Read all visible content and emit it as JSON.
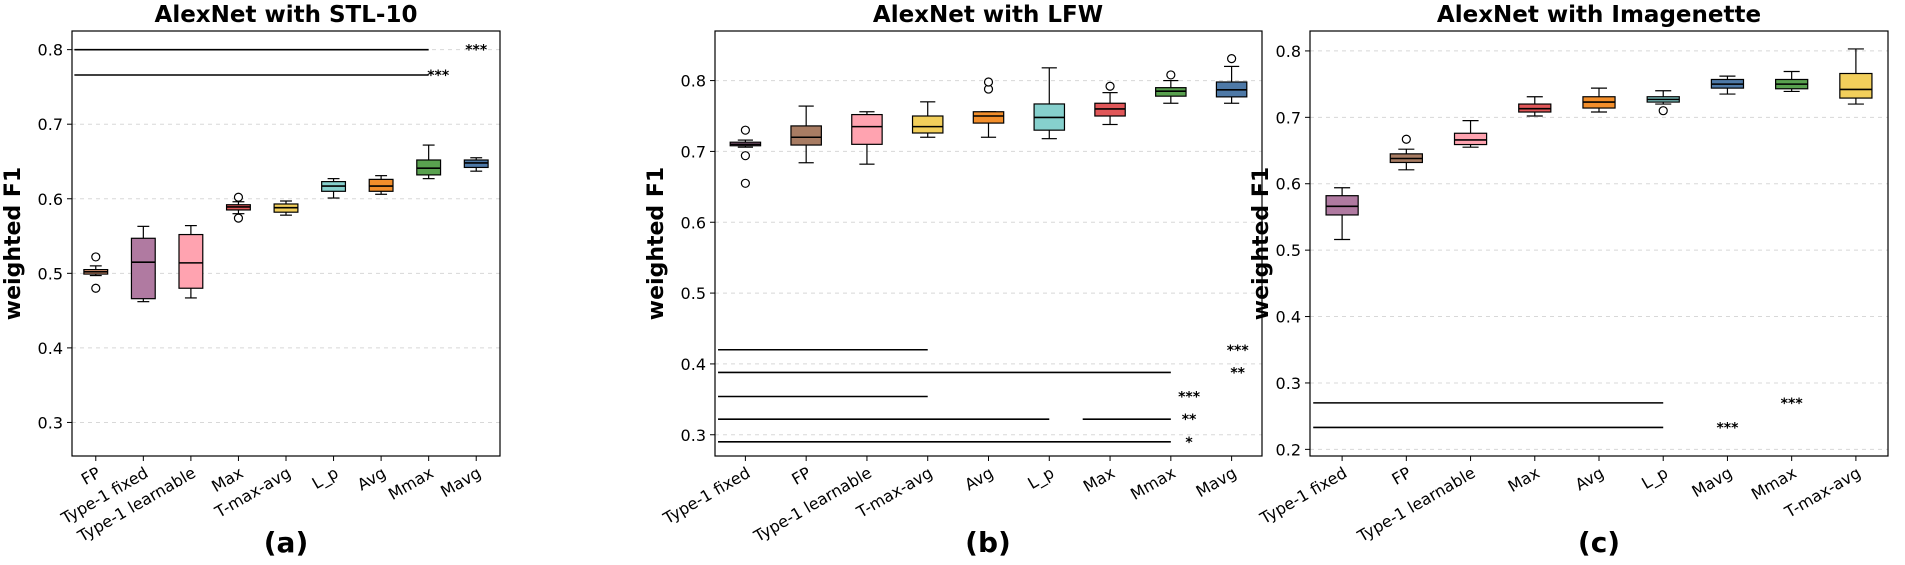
{
  "chart_data": [
    {
      "type": "box",
      "title": "AlexNet with STL-10",
      "panel_label": "(a)",
      "ylabel": "weighted F1",
      "ylim": [
        0.255,
        0.825
      ],
      "yticks": [
        "0.3",
        "0.4",
        "0.5",
        "0.6",
        "0.7",
        "0.8"
      ],
      "categories": [
        "FP",
        "Type-1 fixed",
        "Type-1 learnable",
        "Max",
        "T-max-avg",
        "L_p",
        "Avg",
        "Mmax",
        "Mavg"
      ],
      "colors": [
        "#e8a07a",
        "#b07aa1",
        "#ffa3b0",
        "#e15759",
        "#f2cf5b",
        "#86d0cd",
        "#f28e2b",
        "#59a14f",
        "#4e79a7"
      ],
      "boxes": [
        {
          "wlo": 0.497,
          "q1": 0.499,
          "med": 0.502,
          "q3": 0.505,
          "whi": 0.51,
          "outliers": [
            0.522,
            0.48
          ]
        },
        {
          "wlo": 0.462,
          "q1": 0.466,
          "med": 0.515,
          "q3": 0.547,
          "whi": 0.563,
          "outliers": []
        },
        {
          "wlo": 0.467,
          "q1": 0.48,
          "med": 0.514,
          "q3": 0.552,
          "whi": 0.564,
          "outliers": []
        },
        {
          "wlo": 0.58,
          "q1": 0.585,
          "med": 0.589,
          "q3": 0.592,
          "whi": 0.596,
          "outliers": [
            0.602,
            0.574
          ]
        },
        {
          "wlo": 0.578,
          "q1": 0.582,
          "med": 0.588,
          "q3": 0.593,
          "whi": 0.597,
          "outliers": []
        },
        {
          "wlo": 0.601,
          "q1": 0.61,
          "med": 0.617,
          "q3": 0.623,
          "whi": 0.627,
          "outliers": []
        },
        {
          "wlo": 0.606,
          "q1": 0.61,
          "med": 0.617,
          "q3": 0.626,
          "whi": 0.631,
          "outliers": []
        },
        {
          "wlo": 0.627,
          "q1": 0.632,
          "med": 0.641,
          "q3": 0.652,
          "whi": 0.672,
          "outliers": []
        },
        {
          "wlo": 0.637,
          "q1": 0.642,
          "med": 0.648,
          "q3": 0.652,
          "whi": 0.655,
          "outliers": []
        }
      ],
      "significance": [
        {
          "y": 0.8,
          "from": 0,
          "to": 7,
          "label": "***",
          "label_at": 8.0
        },
        {
          "y": 0.766,
          "from": 0,
          "to": 7,
          "label": "***",
          "label_at": 7.2
        }
      ]
    },
    {
      "type": "box",
      "title": "AlexNet with LFW",
      "panel_label": "(b)",
      "ylabel": "weighted F1",
      "ylim": [
        0.27,
        0.87
      ],
      "yticks": [
        "0.3",
        "0.4",
        "0.5",
        "0.6",
        "0.7",
        "0.8"
      ],
      "categories": [
        "Type-1 fixed",
        "FP",
        "Type-1 learnable",
        "T-max-avg",
        "Avg",
        "L_p",
        "Max",
        "Mmax",
        "Mavg"
      ],
      "colors": [
        "#b07aa1",
        "#a87c63",
        "#ffa3b0",
        "#f2cf5b",
        "#f28e2b",
        "#86d0cd",
        "#e15759",
        "#59a14f",
        "#4e79a7"
      ],
      "boxes": [
        {
          "wlo": 0.706,
          "q1": 0.708,
          "med": 0.71,
          "q3": 0.713,
          "whi": 0.716,
          "outliers": [
            0.73,
            0.694,
            0.655
          ]
        },
        {
          "wlo": 0.684,
          "q1": 0.709,
          "med": 0.72,
          "q3": 0.736,
          "whi": 0.764,
          "outliers": []
        },
        {
          "wlo": 0.682,
          "q1": 0.71,
          "med": 0.735,
          "q3": 0.752,
          "whi": 0.756,
          "outliers": []
        },
        {
          "wlo": 0.72,
          "q1": 0.726,
          "med": 0.735,
          "q3": 0.75,
          "whi": 0.77,
          "outliers": []
        },
        {
          "wlo": 0.72,
          "q1": 0.74,
          "med": 0.75,
          "q3": 0.756,
          "whi": 0.756,
          "outliers": [
            0.788,
            0.798
          ]
        },
        {
          "wlo": 0.718,
          "q1": 0.73,
          "med": 0.748,
          "q3": 0.767,
          "whi": 0.818,
          "outliers": []
        },
        {
          "wlo": 0.738,
          "q1": 0.75,
          "med": 0.76,
          "q3": 0.768,
          "whi": 0.783,
          "outliers": [
            0.792
          ]
        },
        {
          "wlo": 0.768,
          "q1": 0.778,
          "med": 0.785,
          "q3": 0.79,
          "whi": 0.8,
          "outliers": [
            0.808
          ]
        },
        {
          "wlo": 0.768,
          "q1": 0.777,
          "med": 0.787,
          "q3": 0.798,
          "whi": 0.82,
          "outliers": [
            0.831
          ]
        }
      ],
      "significance": [
        {
          "y": 0.42,
          "from": 0,
          "to": 3,
          "label": "***",
          "label_at": 8.1
        },
        {
          "y": 0.388,
          "from": 0,
          "to": 7,
          "label": "**",
          "label_at": 8.1
        },
        {
          "y": 0.354,
          "from": 0,
          "to": 3,
          "label": "***",
          "label_at": 7.3
        },
        {
          "y": 0.322,
          "from": 0,
          "to": 5,
          "label": "**",
          "label_at": 7.3
        },
        {
          "y": 0.322,
          "from": 6,
          "to": 7,
          "label": "",
          "label_at": 7.3
        },
        {
          "y": 0.29,
          "from": 0,
          "to": 7,
          "label": "*",
          "label_at": 7.3
        }
      ]
    },
    {
      "type": "box",
      "title": "AlexNet with Imagenette",
      "panel_label": "(c)",
      "ylabel": "weighted F1",
      "ylim": [
        0.19,
        0.83
      ],
      "yticks": [
        "0.2",
        "0.3",
        "0.4",
        "0.5",
        "0.6",
        "0.7",
        "0.8"
      ],
      "categories": [
        "Type-1 fixed",
        "FP",
        "Type-1 learnable",
        "Max",
        "Avg",
        "L_p",
        "Mavg",
        "Mmax",
        "T-max-avg"
      ],
      "colors": [
        "#b07aa1",
        "#a87c63",
        "#ffa3b0",
        "#e15759",
        "#f28e2b",
        "#86d0cd",
        "#4e79a7",
        "#59a14f",
        "#f2cf5b"
      ],
      "boxes": [
        {
          "wlo": 0.516,
          "q1": 0.553,
          "med": 0.566,
          "q3": 0.582,
          "whi": 0.594,
          "outliers": []
        },
        {
          "wlo": 0.621,
          "q1": 0.632,
          "med": 0.638,
          "q3": 0.645,
          "whi": 0.652,
          "outliers": [
            0.667
          ]
        },
        {
          "wlo": 0.655,
          "q1": 0.659,
          "med": 0.666,
          "q3": 0.676,
          "whi": 0.695,
          "outliers": []
        },
        {
          "wlo": 0.702,
          "q1": 0.708,
          "med": 0.713,
          "q3": 0.72,
          "whi": 0.731,
          "outliers": []
        },
        {
          "wlo": 0.708,
          "q1": 0.714,
          "med": 0.723,
          "q3": 0.731,
          "whi": 0.744,
          "outliers": []
        },
        {
          "wlo": 0.72,
          "q1": 0.723,
          "med": 0.727,
          "q3": 0.731,
          "whi": 0.74,
          "outliers": [
            0.71
          ]
        },
        {
          "wlo": 0.735,
          "q1": 0.744,
          "med": 0.75,
          "q3": 0.757,
          "whi": 0.762,
          "outliers": []
        },
        {
          "wlo": 0.739,
          "q1": 0.743,
          "med": 0.75,
          "q3": 0.757,
          "whi": 0.769,
          "outliers": []
        },
        {
          "wlo": 0.72,
          "q1": 0.729,
          "med": 0.742,
          "q3": 0.766,
          "whi": 0.803,
          "outliers": []
        }
      ],
      "significance": [
        {
          "y": 0.27,
          "from": 0,
          "to": 5,
          "label": "***",
          "label_at": 7.0
        },
        {
          "y": 0.233,
          "from": 0,
          "to": 5,
          "label": "***",
          "label_at": 6.0
        }
      ]
    }
  ]
}
